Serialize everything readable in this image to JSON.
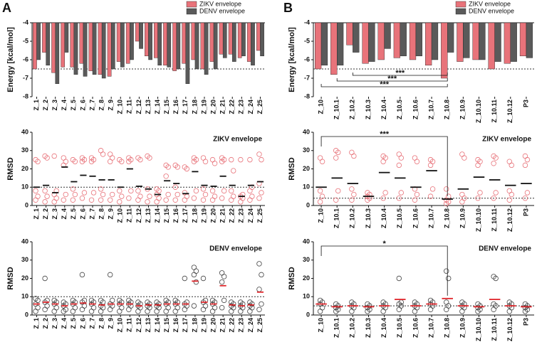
{
  "chart_data": [
    {
      "type": "bar",
      "label": "A",
      "ylabel": "Energy [kcal/mol]",
      "ylim": [
        -8,
        -4
      ],
      "yticks": [
        -4,
        -5,
        -6,
        -7,
        -8
      ],
      "reference_line": -6.5,
      "legend": "top-right",
      "categories": [
        "Z_1",
        "Z_2",
        "Z_3",
        "Z_4",
        "Z_5",
        "Z_6",
        "Z_7",
        "Z_8",
        "Z_9",
        "Z_10",
        "Z_11",
        "Z_12",
        "Z_13",
        "Z_14",
        "Z_15",
        "Z_16",
        "Z_17",
        "Z_18",
        "Z_19",
        "Z_20",
        "Z_21",
        "Z_22",
        "Z_23",
        "Z_24",
        "Z_25"
      ],
      "series": [
        {
          "name": "ZIKV envelope",
          "color": "#e8737a",
          "values": [
            -6.5,
            -5.6,
            -6.7,
            -6.4,
            -6.4,
            -6.2,
            -6.6,
            -6.8,
            -6.9,
            -6.1,
            -6.2,
            -5.0,
            -5.8,
            -5.9,
            -6.3,
            -6.6,
            -6.2,
            -6.0,
            -6.5,
            -6.1,
            -5.7,
            -5.7,
            -5.9,
            -6.1,
            -5.5
          ]
        },
        {
          "name": "DENV envelope",
          "color": "#5a5a5a",
          "values": [
            -6.0,
            -6.3,
            -7.3,
            -5.6,
            -6.8,
            -6.9,
            -6.8,
            -7.0,
            -6.5,
            -6.4,
            -6.0,
            -5.4,
            -6.0,
            -6.3,
            -6.4,
            -6.5,
            -7.3,
            -6.5,
            -6.8,
            -6.5,
            -5.9,
            -6.1,
            -5.8,
            -6.3,
            -5.8
          ]
        }
      ]
    },
    {
      "type": "strip",
      "ylabel": "RMSD",
      "ylim": [
        0,
        40
      ],
      "yticks": [
        0,
        10,
        20,
        30,
        40
      ],
      "reference_line": 10,
      "categories": [
        "Z_1",
        "Z_2",
        "Z_3",
        "Z_4",
        "Z_5",
        "Z_6",
        "Z_7",
        "Z_8",
        "Z_9",
        "Z_10",
        "Z_11",
        "Z_12",
        "Z_13",
        "Z_14",
        "Z_15",
        "Z_16",
        "Z_17",
        "Z_18",
        "Z_19",
        "Z_20",
        "Z_21",
        "Z_22",
        "Z_23",
        "Z_24",
        "Z_25"
      ],
      "series": [
        {
          "name": "ZIKV envelope",
          "color": "#e8737a",
          "mean_color": "#111111",
          "values": [
            10,
            11,
            7,
            21,
            13,
            16.5,
            16,
            14,
            14,
            10,
            20,
            10.5,
            9,
            6,
            13.5,
            12,
            6.5,
            18.5,
            11,
            10.5,
            16,
            11,
            5,
            11,
            13
          ],
          "points": [
            [
              3,
              5,
              8,
              24,
              25
            ],
            [
              2,
              5,
              8,
              26,
              27
            ],
            [
              2,
              4,
              6,
              8,
              27
            ],
            [
              3,
              6,
              22,
              24,
              26
            ],
            [
              3,
              6,
              9,
              24,
              25
            ],
            [
              4,
              7,
              24,
              25,
              26
            ],
            [
              3,
              7,
              24,
              25,
              26
            ],
            [
              3,
              6,
              9,
              28,
              30
            ],
            [
              3,
              6,
              24,
              26,
              28
            ],
            [
              2,
              5,
              8,
              24,
              25
            ],
            [
              4,
              8,
              24,
              25,
              26
            ],
            [
              3,
              5,
              8,
              25,
              26
            ],
            [
              2,
              5,
              9,
              26,
              27
            ],
            [
              2,
              4,
              6,
              8,
              9
            ],
            [
              3,
              6,
              16,
              21,
              22
            ],
            [
              3,
              6,
              10,
              21,
              22
            ],
            [
              3,
              5,
              7,
              20,
              21
            ],
            [
              4,
              8,
              24,
              25,
              26
            ],
            [
              3,
              6,
              9,
              24,
              26
            ],
            [
              3,
              5,
              8,
              23,
              25
            ],
            [
              4,
              8,
              24,
              25,
              26
            ],
            [
              3,
              5,
              8,
              19,
              25
            ],
            [
              2,
              4,
              5,
              6,
              25
            ],
            [
              3,
              5,
              8,
              10,
              25
            ],
            [
              4,
              7,
              12,
              25,
              28
            ]
          ]
        }
      ]
    },
    {
      "type": "strip",
      "ylabel": "RMSD",
      "ylim": [
        0,
        40
      ],
      "yticks": [
        0,
        10,
        20,
        30,
        40
      ],
      "reference_line": 10,
      "categories": [
        "Z_1",
        "Z_2",
        "Z_3",
        "Z_4",
        "Z_5",
        "Z_6",
        "Z_7",
        "Z_8",
        "Z_9",
        "Z_10",
        "Z_11",
        "Z_12",
        "Z_13",
        "Z_14",
        "Z_15",
        "Z_16",
        "Z_17",
        "Z_18",
        "Z_19",
        "Z_20",
        "Z_21",
        "Z_22",
        "Z_23",
        "Z_24",
        "Z_25"
      ],
      "series": [
        {
          "name": "DENV envelope",
          "color": "#444444",
          "mean_color": "#e0262b",
          "values": [
            6,
            7,
            6,
            5,
            6,
            6.5,
            6,
            5.5,
            6,
            6,
            6,
            5,
            5.5,
            5.5,
            6,
            6,
            6,
            18.5,
            7,
            6,
            16,
            5.5,
            5,
            5.5,
            12.5
          ],
          "points": [
            [
              2,
              4,
              6,
              8,
              9
            ],
            [
              3,
              5,
              7,
              8,
              20
            ],
            [
              2,
              4,
              6,
              7,
              8
            ],
            [
              2,
              3,
              5,
              6,
              7
            ],
            [
              2,
              4,
              6,
              7,
              8
            ],
            [
              3,
              5,
              7,
              8,
              22
            ],
            [
              2,
              4,
              6,
              7,
              8
            ],
            [
              2,
              4,
              5,
              7,
              8
            ],
            [
              3,
              5,
              6,
              8,
              22
            ],
            [
              2,
              4,
              6,
              7,
              8
            ],
            [
              3,
              5,
              6,
              7,
              8
            ],
            [
              2,
              4,
              5,
              6,
              7
            ],
            [
              2,
              4,
              5,
              6,
              7
            ],
            [
              2,
              4,
              5,
              6,
              7
            ],
            [
              2,
              4,
              6,
              7,
              8
            ],
            [
              2,
              4,
              6,
              7,
              8
            ],
            [
              3,
              5,
              6,
              7,
              20
            ],
            [
              5,
              18,
              22,
              24,
              26
            ],
            [
              3,
              5,
              7,
              8,
              20
            ],
            [
              2,
              4,
              6,
              7,
              8
            ],
            [
              4,
              8,
              18,
              21,
              23
            ],
            [
              2,
              4,
              5,
              6,
              7
            ],
            [
              2,
              4,
              5,
              6,
              7
            ],
            [
              2,
              4,
              5,
              6,
              7
            ],
            [
              3,
              6,
              14,
              22,
              28
            ]
          ]
        }
      ]
    },
    {
      "type": "bar",
      "label": "B",
      "ylabel": "Energy [kcal/mol]",
      "ylim": [
        -8,
        -4
      ],
      "yticks": [
        -4,
        -5,
        -6,
        -7,
        -8
      ],
      "reference_line": -6.5,
      "legend": "top-right",
      "annotations": [
        "***",
        "***",
        "***"
      ],
      "categories": [
        "Z_10",
        "Z_10.1",
        "Z_10.2",
        "Z_10.3",
        "Z_10.4",
        "Z_10.5",
        "Z_10.6",
        "Z_10.7",
        "Z_10.8",
        "Z_10.9",
        "Z_10.10",
        "Z_10.11",
        "Z_10.12",
        "P3"
      ],
      "series": [
        {
          "name": "ZIKV envelope",
          "color": "#e8737a",
          "values": [
            -6.5,
            -6.8,
            -5.2,
            -6.2,
            -6.0,
            -5.9,
            -6.0,
            -6.3,
            -7.0,
            -6.1,
            -6.0,
            -6.5,
            -6.2,
            -5.8
          ]
        },
        {
          "name": "DENV envelope",
          "color": "#5a5a5a",
          "values": [
            -6.3,
            -6.3,
            -5.6,
            -6.1,
            -5.4,
            -5.8,
            -5.8,
            -6.0,
            -5.6,
            -5.9,
            -6.0,
            -6.1,
            -6.1,
            -5.9
          ]
        }
      ]
    },
    {
      "type": "strip",
      "ylabel": "RMSD",
      "ylim": [
        0,
        40
      ],
      "yticks": [
        0,
        10,
        20,
        30,
        40
      ],
      "reference_line": 4,
      "annotations": [
        "***"
      ],
      "categories": [
        "Z_10",
        "Z_10.1",
        "Z_10.2",
        "Z_10.3",
        "Z_10.4",
        "Z_10.5",
        "Z_10.6",
        "Z_10.7",
        "Z_10.8",
        "Z_10.9",
        "Z_10.10",
        "Z_10.11",
        "Z_10.12",
        "P3"
      ],
      "series": [
        {
          "name": "ZIKV envelope",
          "color": "#e8737a",
          "mean_color": "#111111",
          "values": [
            10,
            15,
            12,
            5,
            18,
            15,
            10,
            19,
            3.5,
            9,
            15.5,
            14,
            11,
            12
          ],
          "points": [
            [
              2,
              5,
              8,
              24,
              26
            ],
            [
              3,
              8,
              26,
              29,
              30
            ],
            [
              3,
              6,
              9,
              27,
              29
            ],
            [
              3,
              4,
              5,
              6,
              7
            ],
            [
              4,
              7,
              24,
              26,
              27
            ],
            [
              4,
              7,
              22,
              26,
              28
            ],
            [
              3,
              6,
              9,
              24,
              26
            ],
            [
              5,
              9,
              22,
              24,
              25
            ],
            [
              1,
              2,
              3,
              5,
              9
            ],
            [
              2,
              4,
              6,
              26,
              28
            ],
            [
              4,
              7,
              22,
              24,
              25
            ],
            [
              4,
              7,
              23,
              26,
              27
            ],
            [
              3,
              6,
              8,
              22,
              24
            ],
            [
              4,
              7,
              22,
              25,
              27
            ]
          ]
        }
      ]
    },
    {
      "type": "strip",
      "ylabel": "RMSD",
      "ylim": [
        0,
        40
      ],
      "yticks": [
        0,
        10,
        20,
        30,
        40
      ],
      "reference_line": 5,
      "annotations": [
        "*"
      ],
      "categories": [
        "Z_10",
        "Z_10.1",
        "Z_10.2",
        "Z_10.3",
        "Z_10.4",
        "Z_10.5",
        "Z_10.6",
        "Z_10.7",
        "Z_10.8",
        "Z_10.9",
        "Z_10.10",
        "Z_10.11",
        "Z_10.12",
        "P3"
      ],
      "series": [
        {
          "name": "DENV envelope",
          "color": "#444444",
          "mean_color": "#e0262b",
          "values": [
            6,
            4.5,
            5,
            4.5,
            5,
            8.5,
            5,
            6,
            9,
            5,
            4.5,
            8.5,
            5,
            4.5
          ],
          "points": [
            [
              2,
              4,
              6,
              7,
              8
            ],
            [
              2,
              3,
              4,
              5,
              6
            ],
            [
              2,
              4,
              5,
              6,
              7
            ],
            [
              2,
              3,
              4,
              5,
              6
            ],
            [
              2,
              4,
              5,
              6,
              7
            ],
            [
              3,
              5,
              6,
              7,
              20
            ],
            [
              2,
              4,
              5,
              6,
              7
            ],
            [
              3,
              5,
              6,
              7,
              8
            ],
            [
              3,
              5,
              7,
              20,
              24
            ],
            [
              2,
              4,
              5,
              6,
              7
            ],
            [
              2,
              3,
              4,
              5,
              6
            ],
            [
              3,
              5,
              6,
              20,
              21
            ],
            [
              2,
              4,
              5,
              6,
              7
            ],
            [
              2,
              3,
              4,
              5,
              6
            ]
          ]
        }
      ]
    }
  ]
}
